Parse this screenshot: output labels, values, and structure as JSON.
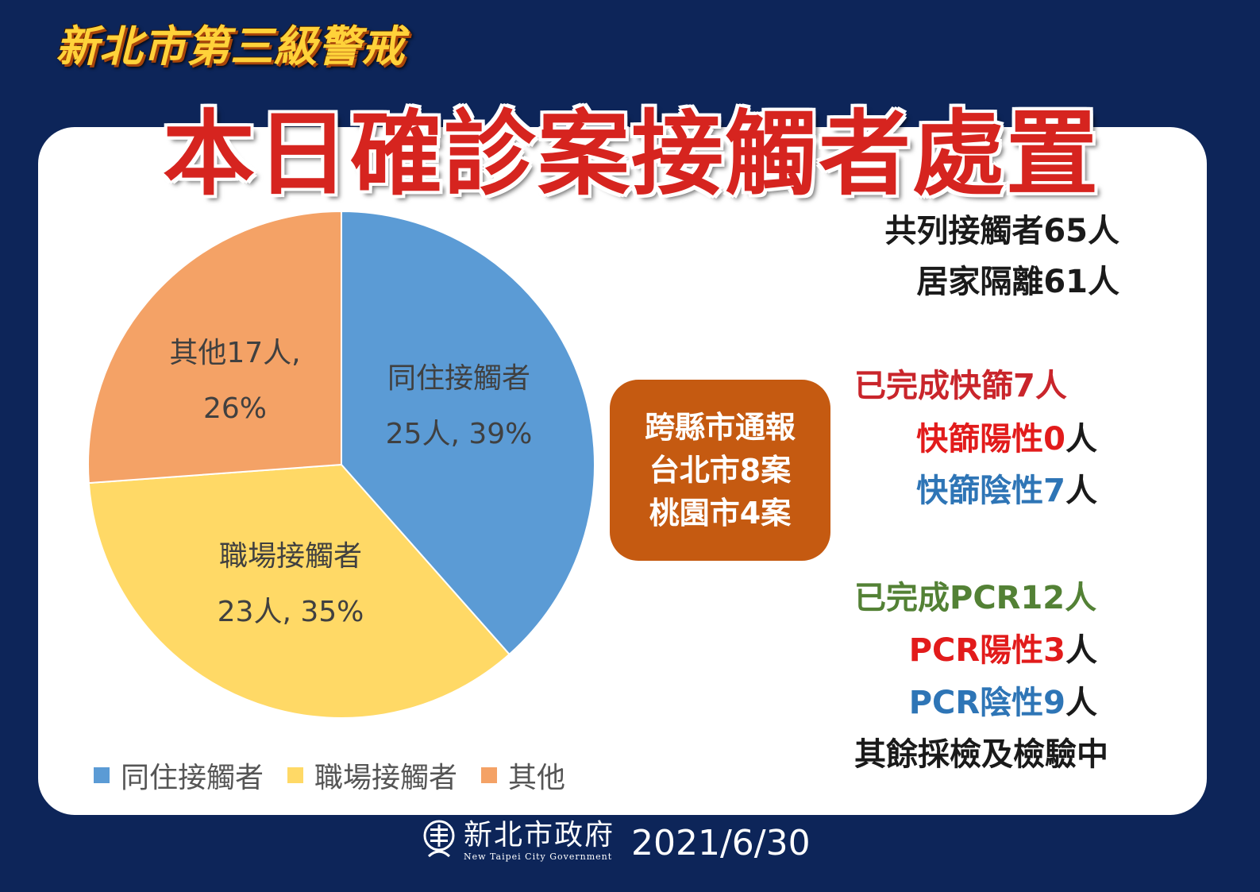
{
  "header": {
    "subtitle": "新北市第三級警戒",
    "title": "本日確診案接觸者處置"
  },
  "colors": {
    "background": "#0d2559",
    "title_red": "#d6241f",
    "subtitle_gold": "#ffd23a",
    "report_box": "#c55a11",
    "red": "#e21b1b",
    "blue": "#2e75b6",
    "green": "#538135",
    "black": "#1a1a1a"
  },
  "chart_data": {
    "type": "pie",
    "categories": [
      "同住接觸者",
      "職場接觸者",
      "其他"
    ],
    "values": [
      25,
      23,
      17
    ],
    "percents": [
      39,
      35,
      26
    ],
    "colors": [
      "#5b9bd5",
      "#ffd966",
      "#f4a266"
    ],
    "data_labels": [
      {
        "name": "同住接觸者",
        "value": "25人, 39%"
      },
      {
        "name": "職場接觸者",
        "value": "23人, 35%"
      },
      {
        "name": "其他17人,",
        "value": "26%"
      }
    ],
    "legend": [
      "同住接觸者",
      "職場接觸者",
      "其他"
    ],
    "legend_position": "bottom-left"
  },
  "report_box": {
    "line1": "跨縣市通報",
    "line2": "台北市8案",
    "line3": "桃園市4案"
  },
  "stats": {
    "total_contacts": "共列接觸者65人",
    "home_isolation": "居家隔離61人",
    "rapid_done": "已完成快篩7人",
    "rapid_pos_label": "快篩陽性0",
    "rapid_pos_unit": "人",
    "rapid_neg_label": "快篩陰性7",
    "rapid_neg_unit": "人",
    "pcr_done": "已完成PCR12人",
    "pcr_pos_label": "PCR陽性3",
    "pcr_pos_unit": "人",
    "pcr_neg_label": "PCR陰性9",
    "pcr_neg_unit": "人",
    "remaining": "其餘採檢及檢驗中"
  },
  "footer": {
    "org_name": "新北市政府",
    "org_name_en": "New Taipei City Government",
    "date": "2021/6/30"
  }
}
